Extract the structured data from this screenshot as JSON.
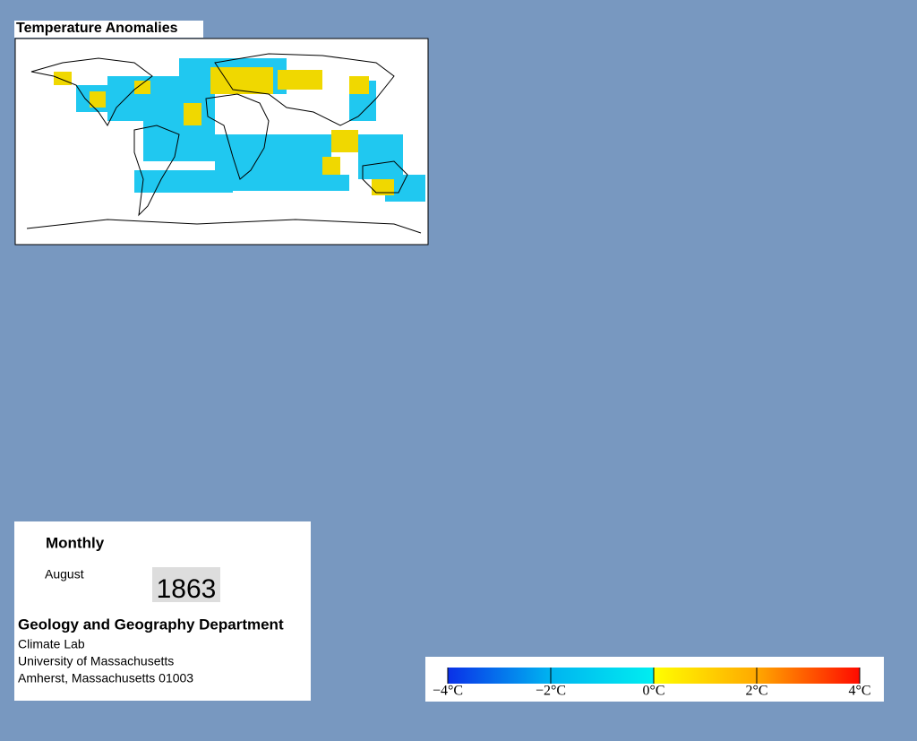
{
  "map": {
    "title": "Temperature Anomalies"
  },
  "info": {
    "period": "Monthly",
    "month": "August",
    "year": "1863",
    "department": "Geology and Geography Department",
    "lab": "Climate Lab",
    "university": "University of Massachusetts",
    "address": "Amherst, Massachusetts 01003"
  },
  "colorbar": {
    "range": [
      -4,
      4
    ],
    "ticks": [
      {
        "value": -4,
        "label": "−4°C"
      },
      {
        "value": -2,
        "label": "−2°C"
      },
      {
        "value": 0,
        "label": "0°C"
      },
      {
        "value": 2,
        "label": "2°C"
      },
      {
        "value": 4,
        "label": "4°C"
      }
    ],
    "colors": [
      "#0a30e8",
      "#00b4f0",
      "#00eef0",
      "#ffff00",
      "#ffa800",
      "#ff0a00"
    ]
  }
}
